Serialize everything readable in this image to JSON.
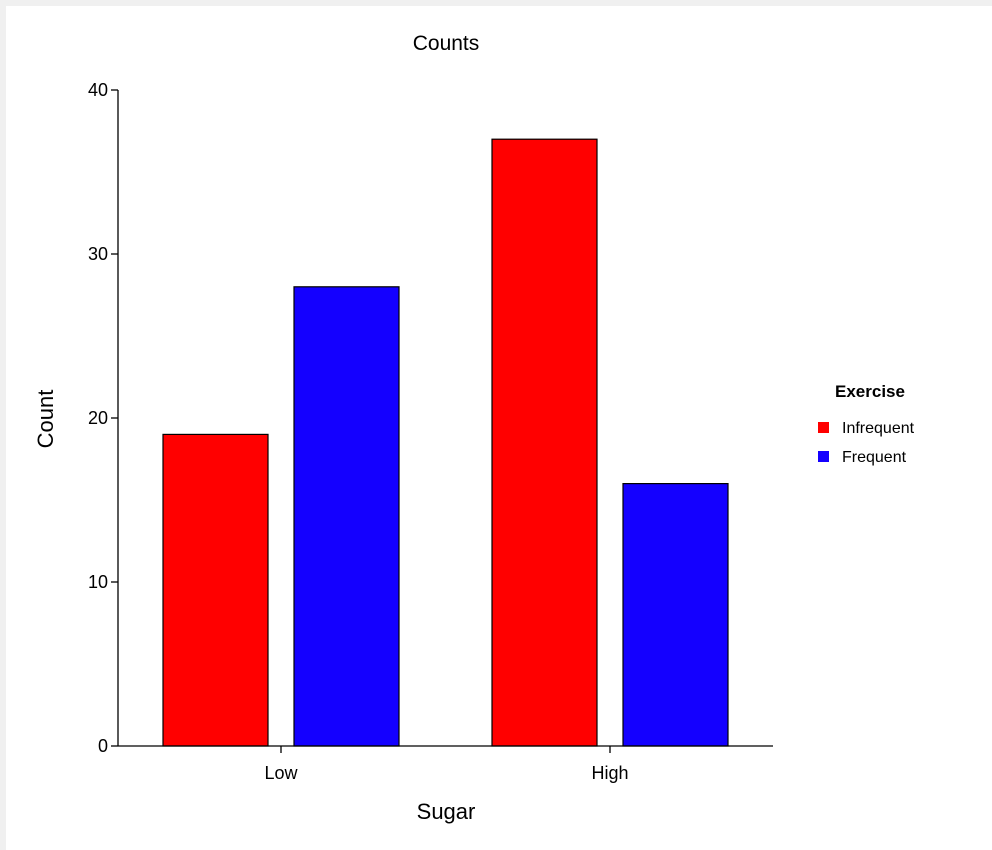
{
  "chart_data": {
    "type": "bar",
    "title": "Counts",
    "xlabel": "Sugar",
    "ylabel": "Count",
    "categories": [
      "Low",
      "High"
    ],
    "series": [
      {
        "name": "Infrequent",
        "values": [
          19,
          37
        ],
        "color": "#ff0000"
      },
      {
        "name": "Frequent",
        "values": [
          28,
          16
        ],
        "color": "#1400ff"
      }
    ],
    "ylim": [
      0,
      40
    ],
    "yticks": [
      0,
      10,
      20,
      30,
      40
    ],
    "grid": false,
    "legend": {
      "title": "Exercise",
      "placement": "right"
    }
  }
}
